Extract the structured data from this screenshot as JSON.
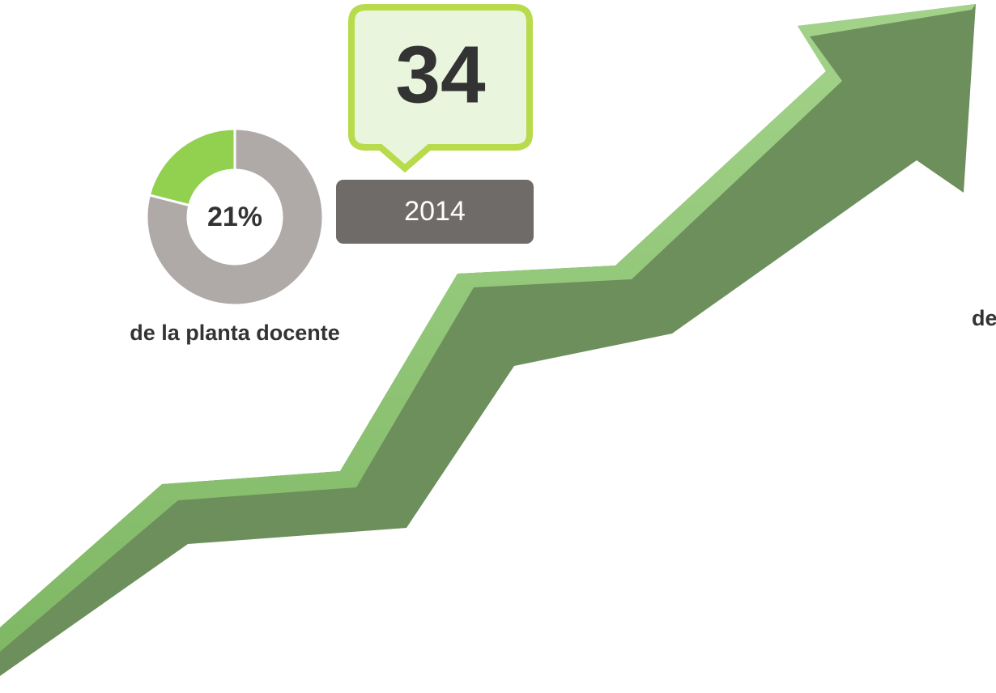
{
  "highlight": {
    "number": 34,
    "year": "2014"
  },
  "donut": {
    "value": 21,
    "value_label": "21%",
    "caption": "de la planta docente"
  },
  "right_caption": "de"
}
